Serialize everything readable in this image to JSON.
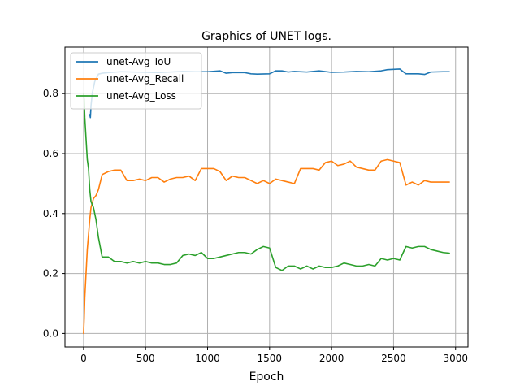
{
  "chart_data": {
    "type": "line",
    "title": "Graphics of UNET logs.",
    "xlabel": "Epoch",
    "ylabel": "",
    "xlim": [
      -150,
      3100
    ],
    "ylim": [
      -0.045,
      0.955
    ],
    "xticks": [
      0,
      500,
      1000,
      1500,
      2000,
      2500,
      3000
    ],
    "yticks": [
      0.0,
      0.2,
      0.4,
      0.6,
      0.8
    ],
    "xtick_labels": [
      "0",
      "500",
      "1000",
      "1500",
      "2000",
      "2500",
      "3000"
    ],
    "ytick_labels": [
      "0.0",
      "0.2",
      "0.4",
      "0.6",
      "0.8"
    ],
    "grid": true,
    "legend_position": "upper-left",
    "series": [
      {
        "name": "unet-Avg_IoU",
        "color": "#1f77b4",
        "x": [
          50,
          55,
          60,
          70,
          90,
          120,
          150,
          200,
          300,
          400,
          500,
          600,
          700,
          800,
          900,
          1000,
          1100,
          1150,
          1200,
          1300,
          1350,
          1400,
          1500,
          1550,
          1600,
          1650,
          1700,
          1800,
          1900,
          2000,
          2100,
          2200,
          2300,
          2400,
          2450,
          2500,
          2550,
          2600,
          2700,
          2750,
          2800,
          2900,
          2950
        ],
        "y": [
          0.73,
          0.72,
          0.76,
          0.8,
          0.84,
          0.865,
          0.868,
          0.87,
          0.873,
          0.872,
          0.871,
          0.87,
          0.872,
          0.874,
          0.873,
          0.873,
          0.876,
          0.868,
          0.87,
          0.87,
          0.866,
          0.865,
          0.866,
          0.876,
          0.876,
          0.872,
          0.874,
          0.872,
          0.876,
          0.871,
          0.872,
          0.874,
          0.873,
          0.876,
          0.88,
          0.881,
          0.882,
          0.866,
          0.866,
          0.864,
          0.872,
          0.873,
          0.873
        ]
      },
      {
        "name": "unet-Avg_Recall",
        "color": "#ff7f0e",
        "x": [
          0,
          5,
          10,
          20,
          30,
          40,
          50,
          60,
          80,
          100,
          120,
          150,
          200,
          250,
          300,
          350,
          400,
          450,
          500,
          550,
          600,
          650,
          700,
          750,
          800,
          850,
          900,
          950,
          1000,
          1050,
          1100,
          1150,
          1200,
          1250,
          1300,
          1350,
          1400,
          1450,
          1500,
          1550,
          1600,
          1650,
          1700,
          1750,
          1800,
          1850,
          1900,
          1950,
          2000,
          2050,
          2100,
          2150,
          2200,
          2250,
          2300,
          2350,
          2400,
          2450,
          2500,
          2550,
          2600,
          2650,
          2700,
          2750,
          2800,
          2850,
          2900,
          2950
        ],
        "y": [
          0.0,
          0.05,
          0.12,
          0.2,
          0.28,
          0.33,
          0.38,
          0.42,
          0.45,
          0.46,
          0.48,
          0.53,
          0.54,
          0.545,
          0.545,
          0.51,
          0.51,
          0.515,
          0.51,
          0.52,
          0.52,
          0.505,
          0.515,
          0.52,
          0.52,
          0.525,
          0.51,
          0.55,
          0.55,
          0.55,
          0.54,
          0.51,
          0.525,
          0.52,
          0.52,
          0.51,
          0.5,
          0.51,
          0.5,
          0.515,
          0.51,
          0.505,
          0.5,
          0.55,
          0.55,
          0.55,
          0.545,
          0.57,
          0.575,
          0.56,
          0.565,
          0.575,
          0.555,
          0.55,
          0.545,
          0.545,
          0.575,
          0.58,
          0.575,
          0.57,
          0.495,
          0.505,
          0.495,
          0.51,
          0.505,
          0.505,
          0.505,
          0.505
        ]
      },
      {
        "name": "unet-Avg_Loss",
        "color": "#2ca02c",
        "x": [
          0,
          5,
          10,
          20,
          30,
          40,
          50,
          60,
          80,
          100,
          120,
          150,
          200,
          250,
          300,
          350,
          400,
          450,
          500,
          550,
          600,
          650,
          700,
          750,
          800,
          850,
          900,
          950,
          1000,
          1050,
          1100,
          1150,
          1200,
          1250,
          1300,
          1350,
          1400,
          1450,
          1500,
          1550,
          1600,
          1650,
          1700,
          1750,
          1800,
          1850,
          1900,
          1950,
          2000,
          2050,
          2100,
          2150,
          2200,
          2250,
          2300,
          2350,
          2400,
          2450,
          2500,
          2550,
          2600,
          2650,
          2700,
          2750,
          2800,
          2850,
          2900,
          2950
        ],
        "y": [
          0.8,
          0.78,
          0.72,
          0.65,
          0.58,
          0.55,
          0.48,
          0.44,
          0.42,
          0.38,
          0.32,
          0.255,
          0.255,
          0.24,
          0.24,
          0.235,
          0.24,
          0.235,
          0.24,
          0.235,
          0.235,
          0.23,
          0.23,
          0.235,
          0.26,
          0.265,
          0.26,
          0.27,
          0.25,
          0.25,
          0.255,
          0.26,
          0.265,
          0.27,
          0.27,
          0.265,
          0.28,
          0.29,
          0.285,
          0.22,
          0.21,
          0.225,
          0.225,
          0.215,
          0.225,
          0.215,
          0.225,
          0.22,
          0.22,
          0.225,
          0.235,
          0.23,
          0.225,
          0.225,
          0.23,
          0.225,
          0.25,
          0.245,
          0.25,
          0.245,
          0.29,
          0.285,
          0.29,
          0.29,
          0.28,
          0.275,
          0.27,
          0.268
        ]
      }
    ]
  }
}
